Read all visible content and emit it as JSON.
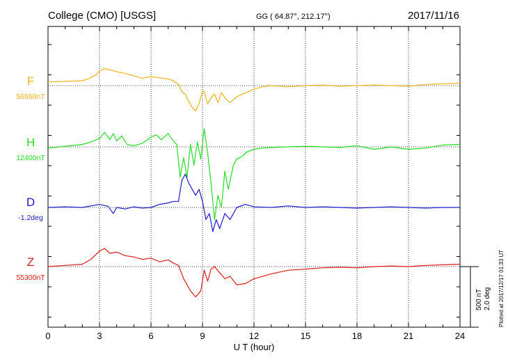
{
  "header": {
    "station": "College (CMO)  [USGS]",
    "coords": "GG ( 64.87°, 212.17°)",
    "date": "2017/11/16"
  },
  "footer": {
    "scale_nt": "500 nT",
    "scale_deg": "2.0 deg",
    "plotted": "Plotted at 2017/12/17 01:33 UT"
  },
  "chart_data": {
    "type": "line",
    "xlabel": "U T (hour)",
    "xlim": [
      0,
      24
    ],
    "xticks": [
      "0",
      "3",
      "6",
      "9",
      "12",
      "15",
      "18",
      "21",
      "24"
    ],
    "scale": {
      "amplitude_nT": 500,
      "amplitude_deg": 2.0
    },
    "series": [
      {
        "name": "F",
        "baseline_label": "56650nT",
        "color": "#f2b21a",
        "x": [
          0,
          1,
          2,
          2.4,
          2.8,
          3,
          3.3,
          3.6,
          4,
          4.5,
          5,
          5.5,
          6,
          6.5,
          7,
          7.3,
          7.6,
          7.8,
          8,
          8.2,
          8.4,
          8.6,
          8.8,
          9,
          9.1,
          9.3,
          9.5,
          9.7,
          9.9,
          10.1,
          10.3,
          10.6,
          11,
          11.5,
          12,
          12.5,
          13,
          14,
          15,
          16,
          17,
          18,
          19,
          20,
          21,
          22,
          23,
          24
        ],
        "values": [
          30,
          35,
          40,
          60,
          90,
          120,
          140,
          130,
          115,
          100,
          80,
          60,
          75,
          65,
          55,
          40,
          10,
          -50,
          -70,
          -130,
          -180,
          -210,
          -150,
          -40,
          -50,
          -150,
          -100,
          -70,
          -140,
          -60,
          -100,
          -140,
          -90,
          -60,
          -30,
          -10,
          0,
          -10,
          0,
          5,
          -5,
          0,
          5,
          0,
          -5,
          10,
          15,
          20
        ]
      },
      {
        "name": "H",
        "baseline_label": "12400nT",
        "color": "#22dd22",
        "x": [
          0,
          1,
          2,
          2.5,
          3,
          3.3,
          3.6,
          3.8,
          4,
          4.3,
          4.6,
          5,
          5.5,
          6,
          6.3,
          6.6,
          7,
          7.3,
          7.5,
          7.7,
          7.9,
          8.1,
          8.3,
          8.5,
          8.7,
          8.9,
          9.1,
          9.3,
          9.5,
          9.7,
          9.9,
          10.1,
          10.3,
          10.5,
          10.8,
          11,
          11.3,
          11.6,
          12,
          12.5,
          13,
          14,
          15,
          16,
          17,
          18,
          19,
          20,
          21,
          22,
          23,
          24
        ],
        "values": [
          -10,
          5,
          20,
          40,
          70,
          120,
          60,
          110,
          50,
          90,
          20,
          10,
          30,
          80,
          100,
          60,
          110,
          50,
          20,
          -250,
          -90,
          -250,
          20,
          -150,
          40,
          -100,
          150,
          -50,
          -300,
          -600,
          -400,
          -500,
          -200,
          -350,
          -150,
          -100,
          -80,
          -40,
          -20,
          -10,
          -5,
          0,
          5,
          0,
          -5,
          10,
          -20,
          0,
          -20,
          -10,
          15,
          20
        ]
      },
      {
        "name": "D",
        "baseline_label": "-1.2deg",
        "color": "#1a1acc",
        "x": [
          0,
          1,
          2,
          2.5,
          3,
          3.5,
          3.8,
          4,
          4.5,
          5,
          5.5,
          6,
          6.5,
          7,
          7.3,
          7.6,
          7.8,
          8,
          8.2,
          8.4,
          8.6,
          8.8,
          9,
          9.2,
          9.4,
          9.6,
          9.8,
          10,
          10.3,
          10.6,
          11,
          11.5,
          12,
          13,
          14,
          15,
          16,
          17,
          18,
          19,
          20,
          21,
          22,
          23,
          24
        ],
        "values": [
          0,
          0.02,
          0,
          0.05,
          0.1,
          0.04,
          -0.2,
          0,
          -0.05,
          0.02,
          -0.02,
          0,
          0.1,
          0.15,
          0.2,
          0.2,
          0.9,
          1.1,
          0.8,
          0.6,
          0.4,
          0.6,
          0.2,
          -0.4,
          -0.2,
          -0.8,
          -0.4,
          -0.7,
          -0.2,
          -0.4,
          0,
          0.1,
          0.02,
          0,
          0.05,
          0,
          0.02,
          0,
          -0.02,
          0,
          0.02,
          0,
          -0.02,
          0,
          0
        ]
      },
      {
        "name": "Z",
        "baseline_label": "55300nT",
        "color": "#e01a1a",
        "x": [
          0,
          1,
          2,
          2.5,
          3,
          3.3,
          3.6,
          4,
          4.5,
          5,
          5.5,
          6,
          6.5,
          7,
          7.3,
          7.6,
          7.9,
          8.1,
          8.3,
          8.6,
          8.9,
          9.1,
          9.3,
          9.5,
          9.7,
          10,
          10.3,
          10.6,
          11,
          11.5,
          12,
          13,
          14,
          15,
          16,
          17,
          18,
          19,
          20,
          21,
          22,
          23,
          24
        ],
        "values": [
          0,
          10,
          20,
          60,
          130,
          150,
          110,
          120,
          90,
          80,
          60,
          70,
          40,
          55,
          30,
          10,
          -100,
          -150,
          -200,
          -250,
          -200,
          -30,
          -120,
          -20,
          0,
          -50,
          -100,
          -80,
          -150,
          -140,
          -100,
          -60,
          -30,
          -20,
          -10,
          -5,
          -10,
          0,
          5,
          0,
          10,
          15,
          20
        ]
      }
    ]
  }
}
